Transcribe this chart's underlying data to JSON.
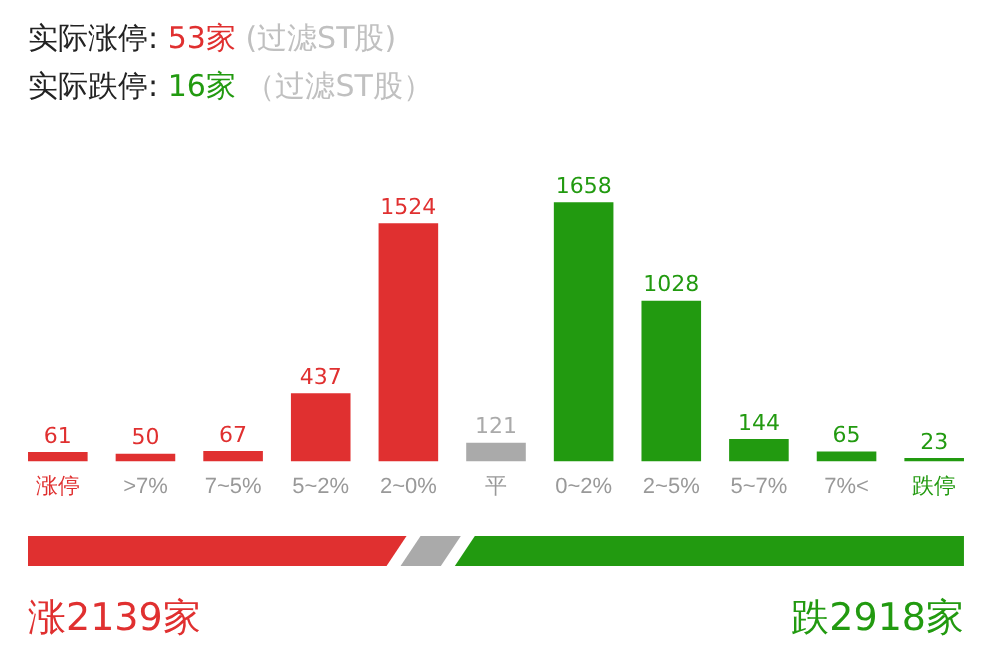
{
  "chart_data": {
    "type": "bar",
    "categories": [
      "涨停",
      ">7%",
      "7~5%",
      "5~2%",
      "2~0%",
      "平",
      "0~2%",
      "2~5%",
      "5~7%",
      "7%<",
      "跌停"
    ],
    "values": [
      61,
      50,
      67,
      437,
      1524,
      121,
      1658,
      1028,
      144,
      65,
      23
    ],
    "colors": [
      "#e03030",
      "#e03030",
      "#e03030",
      "#e03030",
      "#e03030",
      "#aaaaaa",
      "#229a10",
      "#229a10",
      "#229a10",
      "#229a10",
      "#229a10"
    ],
    "data_labels": true,
    "legend": false,
    "grid": false,
    "annotations": [
      "实际涨停: 53家 (过滤ST股)",
      "实际跌停: 16家 （过滤ST股）",
      "涨2139家",
      "跌2918家"
    ]
  }
}
